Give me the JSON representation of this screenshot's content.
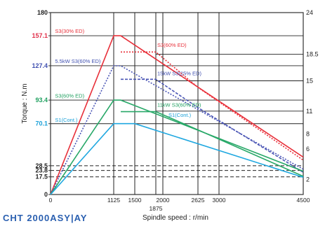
{
  "model_name": "CHT 2000ASY|AY",
  "chart_data": {
    "type": "line",
    "xlabel": "Spindle speed : r/min",
    "ylabel_left": "Torque : N.m",
    "xlim": [
      0,
      4500
    ],
    "ylim_left": [
      0,
      180
    ],
    "ylim_right": [
      0,
      24
    ],
    "x_ticks": [
      "0",
      "1125",
      "1500",
      "1875",
      "2000",
      "2625",
      "3000",
      "4500"
    ],
    "y_ticks_left": [
      "0",
      "17.5",
      "23.8",
      "28.5",
      "70.1",
      "93.4",
      "127.4",
      "157.1",
      "180"
    ],
    "y_ticks_right": [
      "24",
      "18.5",
      "15",
      "11",
      "8",
      "6",
      "2"
    ],
    "left_tick_colors": {
      "157.1": "#e0304a",
      "127.4": "#4050b0",
      "93.4": "#20a060",
      "70.1": "#1aa0d8"
    },
    "series": [
      {
        "name": "S3(30% ED)",
        "color": "#e8303a",
        "x": [
          0,
          1125,
          1250,
          4500
        ],
        "y": [
          0,
          157.1,
          157.1,
          37
        ],
        "style": "solid"
      },
      {
        "name": "S3(60% ED)",
        "color": "#e8303a",
        "x": [
          1250,
          1875,
          2625,
          4500
        ],
        "y": [
          141,
          141,
          106,
          34
        ],
        "style": "dotted"
      },
      {
        "name": "S3(25% ED) 15kW",
        "color": "#4a55b5",
        "x": [
          0,
          1125,
          1250,
          4500
        ],
        "y": [
          0,
          127.4,
          127.4,
          25
        ],
        "style": "dotted"
      },
      {
        "name": "S3(25% ED) 15kW",
        "color": "#4a55b5",
        "x": [
          1250,
          1875,
          2625,
          4500
        ],
        "y": [
          114,
          114,
          86,
          22
        ],
        "style": "dashed"
      },
      {
        "name": "S3(60% ED)",
        "color": "#28a868",
        "x": [
          0,
          1125,
          1250,
          4500
        ],
        "y": [
          0,
          93.4,
          93.4,
          23
        ],
        "style": "solid"
      },
      {
        "name": "S3(60% ED)",
        "color": "#28a868",
        "x": [
          1250,
          1875,
          2625,
          4500
        ],
        "y": [
          82,
          82,
          64,
          18
        ],
        "style": "solid"
      },
      {
        "name": "S1(Cont.)",
        "color": "#20a8e0",
        "x": [
          0,
          1125,
          1500,
          4500
        ],
        "y": [
          0,
          70.1,
          70.1,
          17
        ],
        "style": "solid"
      }
    ],
    "annotations": [
      {
        "text": "S3(30% ED)",
        "color": "#e8303a",
        "x": 80,
        "y": 160
      },
      {
        "text": "5.5kW  S3(60% ED)",
        "color": "#4050b0",
        "x": 80,
        "y": 130
      },
      {
        "text": "S3(60% ED)",
        "color": "#20a060",
        "x": 80,
        "y": 96
      },
      {
        "text": "S1(Cont.)",
        "color": "#1aa0d8",
        "x": 80,
        "y": 72
      },
      {
        "text": "S3(60% ED)",
        "color": "#e8303a",
        "x": 1900,
        "y": 146
      },
      {
        "text": "15kW  S3(25% ED)",
        "color": "#4050b0",
        "x": 1900,
        "y": 118
      },
      {
        "text": "11kW  S3(60% ED)",
        "color": "#20a060",
        "x": 1900,
        "y": 87
      },
      {
        "text": "S1(Cont.)",
        "color": "#1aa0d8",
        "x": 2100,
        "y": 77
      }
    ],
    "reference_lines_left": [
      17.5,
      23.8,
      28.5,
      70.1,
      93.4,
      127.4,
      157.1
    ],
    "reference_lines_right": [
      18.5,
      15,
      11
    ],
    "vertical_lines_x": [
      1125,
      1500,
      1875,
      2000,
      2625,
      3000
    ],
    "grid": true
  }
}
